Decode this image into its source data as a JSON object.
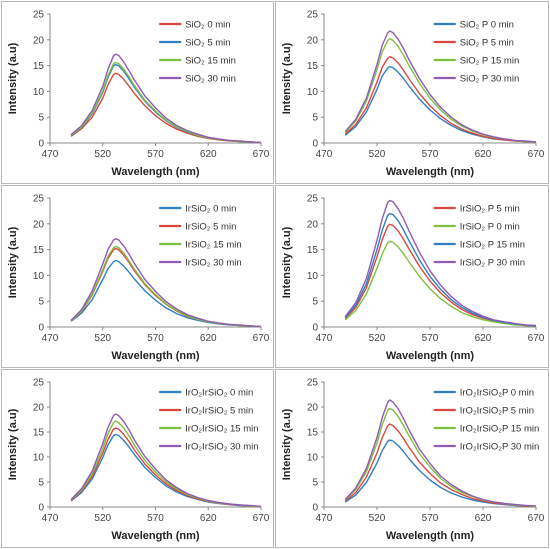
{
  "chart_data": [
    {
      "type": "line",
      "xlabel": "Wavelength (nm)",
      "ylabel": "Intensity (a.u)",
      "xlim": [
        470,
        670
      ],
      "ylim": [
        0,
        25
      ],
      "xticks": [
        "470",
        "520",
        "570",
        "620",
        "670"
      ],
      "yticks": [
        "0",
        "5",
        "10",
        "15",
        "20",
        "25"
      ],
      "legend_position": "top-right",
      "x": [
        490,
        500,
        510,
        520,
        525,
        530,
        532,
        535,
        540,
        545,
        550,
        560,
        570,
        580,
        590,
        600,
        610,
        620,
        630,
        640,
        650,
        660,
        670
      ],
      "series": [
        {
          "name": "SiO₂ 0 min",
          "color": "#d9473f",
          "values": [
            1.3,
            2.8,
            5.0,
            8.7,
            11.3,
            13.2,
            13.5,
            13.3,
            12.3,
            11.0,
            9.6,
            7.2,
            5.3,
            3.8,
            2.7,
            1.9,
            1.3,
            0.9,
            0.6,
            0.4,
            0.3,
            0.2,
            0.1
          ]
        },
        {
          "name": "SiO₂ 5 min",
          "color": "#2f7fc1",
          "values": [
            1.4,
            3.0,
            5.6,
            9.8,
            12.7,
            14.9,
            15.2,
            15.0,
            13.9,
            12.4,
            10.8,
            8.1,
            6.0,
            4.3,
            3.0,
            2.1,
            1.5,
            1.0,
            0.7,
            0.5,
            0.3,
            0.2,
            0.1
          ]
        },
        {
          "name": "SiO₂ 15 min",
          "color": "#7fbf3f",
          "values": [
            1.5,
            3.1,
            5.8,
            10.1,
            13.1,
            15.3,
            15.6,
            15.4,
            14.3,
            12.8,
            11.1,
            8.3,
            6.2,
            4.4,
            3.1,
            2.2,
            1.5,
            1.0,
            0.7,
            0.5,
            0.3,
            0.2,
            0.1
          ]
        },
        {
          "name": "SiO₂ 30 min",
          "color": "#8e5bb5",
          "values": [
            1.6,
            3.4,
            6.3,
            11.0,
            14.3,
            16.8,
            17.2,
            17.0,
            15.7,
            14.0,
            12.2,
            9.1,
            6.8,
            4.8,
            3.4,
            2.4,
            1.7,
            1.1,
            0.8,
            0.5,
            0.4,
            0.2,
            0.1
          ]
        }
      ]
    },
    {
      "type": "line",
      "xlabel": "Wavelength (nm)",
      "ylabel": "Intensity (a.u)",
      "xlim": [
        470,
        670
      ],
      "ylim": [
        0,
        25
      ],
      "xticks": [
        "470",
        "520",
        "570",
        "620",
        "670"
      ],
      "yticks": [
        "0",
        "5",
        "10",
        "15",
        "20",
        "25"
      ],
      "legend_position": "top-right",
      "x": [
        490,
        500,
        510,
        520,
        525,
        530,
        532,
        535,
        540,
        545,
        550,
        560,
        570,
        580,
        590,
        600,
        610,
        620,
        630,
        640,
        650,
        660,
        670
      ],
      "series": [
        {
          "name": "SiO₂ P  0 min",
          "color": "#2f7fc1",
          "values": [
            1.5,
            3.2,
            6.0,
            10.4,
            13.0,
            14.5,
            14.8,
            14.6,
            13.7,
            12.5,
            11.1,
            8.5,
            6.4,
            4.7,
            3.4,
            2.4,
            1.7,
            1.2,
            0.8,
            0.6,
            0.4,
            0.3,
            0.2
          ]
        },
        {
          "name": "SiO₂ P  5 min",
          "color": "#d9473f",
          "values": [
            1.7,
            3.6,
            6.8,
            11.8,
            14.7,
            16.4,
            16.7,
            16.5,
            15.5,
            14.1,
            12.5,
            9.6,
            7.2,
            5.3,
            3.8,
            2.7,
            1.9,
            1.3,
            0.9,
            0.6,
            0.4,
            0.3,
            0.2
          ]
        },
        {
          "name": "SiO₂ P 15 min",
          "color": "#7fbf3f",
          "values": [
            2.0,
            4.3,
            8.1,
            14.2,
            17.7,
            19.8,
            20.2,
            19.9,
            18.7,
            17.0,
            15.1,
            11.6,
            8.7,
            6.4,
            4.6,
            3.3,
            2.3,
            1.6,
            1.1,
            0.8,
            0.5,
            0.3,
            0.2
          ]
        },
        {
          "name": "SiO₂ P 30 min",
          "color": "#8e5bb5",
          "values": [
            2.2,
            4.6,
            8.7,
            15.2,
            19.0,
            21.3,
            21.7,
            21.4,
            20.1,
            18.3,
            16.2,
            12.5,
            9.4,
            6.9,
            5.0,
            3.5,
            2.5,
            1.7,
            1.2,
            0.8,
            0.5,
            0.4,
            0.2
          ]
        }
      ]
    },
    {
      "type": "line",
      "xlabel": "Wavelength (nm)",
      "ylabel": "Intensity (a.u)",
      "xlim": [
        470,
        670
      ],
      "ylim": [
        0,
        25
      ],
      "xticks": [
        "470",
        "520",
        "570",
        "620",
        "670"
      ],
      "yticks": [
        "0",
        "5",
        "10",
        "15",
        "20",
        "25"
      ],
      "legend_position": "top-right",
      "x": [
        490,
        500,
        510,
        520,
        525,
        530,
        532,
        535,
        540,
        545,
        550,
        560,
        570,
        580,
        590,
        600,
        610,
        620,
        630,
        640,
        650,
        660,
        670
      ],
      "series": [
        {
          "name": "IrSiO₂  0 min",
          "color": "#2f7fc1",
          "values": [
            1.1,
            2.7,
            5.3,
            9.2,
            11.3,
            12.6,
            12.9,
            12.7,
            11.8,
            10.6,
            9.3,
            7.0,
            5.2,
            3.7,
            2.6,
            1.8,
            1.3,
            0.9,
            0.6,
            0.4,
            0.3,
            0.2,
            0.1
          ]
        },
        {
          "name": "IrSiO₂  5 min",
          "color": "#d9473f",
          "values": [
            1.2,
            3.0,
            6.2,
            10.8,
            13.3,
            14.9,
            15.2,
            15.0,
            13.9,
            12.5,
            10.9,
            8.2,
            6.1,
            4.4,
            3.1,
            2.1,
            1.5,
            1.0,
            0.7,
            0.5,
            0.3,
            0.2,
            0.1
          ]
        },
        {
          "name": "IrSiO₂  15 min",
          "color": "#7fbf3f",
          "values": [
            1.2,
            3.1,
            6.4,
            11.1,
            13.7,
            15.3,
            15.6,
            15.4,
            14.3,
            12.8,
            11.2,
            8.4,
            6.3,
            4.5,
            3.2,
            2.2,
            1.5,
            1.0,
            0.7,
            0.5,
            0.3,
            0.2,
            0.1
          ]
        },
        {
          "name": "IrSiO₂  30 min",
          "color": "#8e5bb5",
          "values": [
            1.3,
            3.4,
            7.0,
            12.2,
            15.0,
            16.8,
            17.1,
            16.9,
            15.7,
            14.1,
            12.3,
            9.2,
            6.9,
            4.9,
            3.5,
            2.4,
            1.7,
            1.1,
            0.8,
            0.5,
            0.4,
            0.2,
            0.1
          ]
        }
      ]
    },
    {
      "type": "line",
      "xlabel": "Wavelength (nm)",
      "ylabel": "Intensity (a.u)",
      "xlim": [
        470,
        670
      ],
      "ylim": [
        0,
        25
      ],
      "xticks": [
        "470",
        "520",
        "570",
        "620",
        "670"
      ],
      "yticks": [
        "0",
        "5",
        "10",
        "15",
        "20",
        "25"
      ],
      "legend_position": "top-right",
      "x": [
        490,
        500,
        510,
        520,
        525,
        530,
        532,
        535,
        540,
        545,
        550,
        560,
        570,
        580,
        590,
        600,
        610,
        620,
        630,
        640,
        650,
        660,
        670
      ],
      "series": [
        {
          "name": "IrSiO₂ P 5 min",
          "color": "#d9473f",
          "values": [
            1.6,
            3.8,
            7.6,
            13.6,
            17.0,
            19.5,
            19.9,
            19.7,
            18.6,
            17.0,
            15.2,
            11.8,
            8.9,
            6.6,
            4.8,
            3.4,
            2.4,
            1.7,
            1.2,
            0.8,
            0.5,
            0.3,
            0.2
          ]
        },
        {
          "name": "IrSiO₂ P 0 min",
          "color": "#7fbf3f",
          "values": [
            1.4,
            3.2,
            6.4,
            11.4,
            14.2,
            16.3,
            16.6,
            16.4,
            15.5,
            14.2,
            12.7,
            9.8,
            7.4,
            5.5,
            4.0,
            2.8,
            2.0,
            1.4,
            1.0,
            0.7,
            0.4,
            0.3,
            0.2
          ]
        },
        {
          "name": "IrSiO₂ P 15 min",
          "color": "#2f7fc1",
          "values": [
            1.8,
            4.2,
            8.4,
            15.0,
            18.8,
            21.6,
            22.0,
            21.8,
            20.6,
            18.8,
            16.8,
            13.0,
            9.8,
            7.3,
            5.3,
            3.8,
            2.7,
            1.9,
            1.3,
            0.9,
            0.6,
            0.4,
            0.2
          ]
        },
        {
          "name": "IrSiO₂ P 30 min",
          "color": "#8e5bb5",
          "values": [
            2.0,
            4.7,
            9.4,
            16.8,
            21.0,
            24.1,
            24.5,
            24.3,
            22.9,
            21.0,
            18.7,
            14.5,
            10.9,
            8.1,
            5.9,
            4.2,
            3.0,
            2.1,
            1.4,
            1.0,
            0.7,
            0.4,
            0.3
          ]
        }
      ]
    },
    {
      "type": "line",
      "xlabel": "Wavelength (nm)",
      "ylabel": "Intensity (a.u)",
      "xlim": [
        470,
        670
      ],
      "ylim": [
        0,
        25
      ],
      "xticks": [
        "470",
        "520",
        "570",
        "620",
        "670"
      ],
      "yticks": [
        "0",
        "5",
        "10",
        "15",
        "20",
        "25"
      ],
      "legend_position": "top-right",
      "x": [
        490,
        500,
        510,
        520,
        525,
        530,
        532,
        535,
        540,
        545,
        550,
        560,
        570,
        580,
        590,
        600,
        610,
        620,
        630,
        640,
        650,
        660,
        670
      ],
      "series": [
        {
          "name": "IrO₂IrSiO₂  0 min",
          "color": "#2f7fc1",
          "values": [
            1.2,
            2.9,
            5.6,
            9.9,
            12.4,
            14.2,
            14.5,
            14.3,
            13.3,
            12.0,
            10.5,
            7.9,
            5.9,
            4.2,
            3.0,
            2.1,
            1.5,
            1.0,
            0.7,
            0.5,
            0.3,
            0.2,
            0.1
          ]
        },
        {
          "name": "IrO₂IrSiO₂  5 min",
          "color": "#d9473f",
          "values": [
            1.3,
            3.2,
            6.1,
            10.8,
            13.5,
            15.5,
            15.8,
            15.6,
            14.5,
            13.1,
            11.4,
            8.6,
            6.4,
            4.6,
            3.3,
            2.3,
            1.6,
            1.1,
            0.8,
            0.5,
            0.4,
            0.2,
            0.1
          ]
        },
        {
          "name": "IrO₂IrSiO₂  15 min",
          "color": "#7fbf3f",
          "values": [
            1.4,
            3.4,
            6.6,
            11.7,
            14.7,
            16.8,
            17.2,
            16.9,
            15.8,
            14.2,
            12.4,
            9.3,
            7.0,
            5.0,
            3.6,
            2.5,
            1.8,
            1.2,
            0.8,
            0.6,
            0.4,
            0.2,
            0.1
          ]
        },
        {
          "name": "IrO₂IrSiO₂  30 min",
          "color": "#8e5bb5",
          "values": [
            1.5,
            3.7,
            7.2,
            12.7,
            15.9,
            18.2,
            18.6,
            18.3,
            17.1,
            15.4,
            13.4,
            10.1,
            7.6,
            5.4,
            3.9,
            2.7,
            1.9,
            1.3,
            0.9,
            0.6,
            0.4,
            0.3,
            0.1
          ]
        }
      ]
    },
    {
      "type": "line",
      "xlabel": "Wavelength (nm)",
      "ylabel": "Intensity (a.u)",
      "xlim": [
        470,
        670
      ],
      "ylim": [
        0,
        25
      ],
      "xticks": [
        "470",
        "520",
        "570",
        "620",
        "670"
      ],
      "yticks": [
        "0",
        "5",
        "10",
        "15",
        "20",
        "25"
      ],
      "legend_position": "top-right",
      "x": [
        490,
        500,
        510,
        520,
        525,
        530,
        532,
        535,
        540,
        545,
        550,
        560,
        570,
        580,
        590,
        600,
        610,
        620,
        630,
        640,
        650,
        660,
        670
      ],
      "series": [
        {
          "name": "IrO₂IrSiO₂P  0 min",
          "color": "#2f7fc1",
          "values": [
            1.0,
            2.4,
            4.9,
            8.8,
            11.3,
            13.1,
            13.4,
            13.2,
            12.3,
            11.1,
            9.7,
            7.3,
            5.4,
            3.9,
            2.8,
            2.0,
            1.4,
            1.0,
            0.7,
            0.5,
            0.3,
            0.2,
            0.1
          ]
        },
        {
          "name": "IrO₂IrSiO₂P  5 min",
          "color": "#d9473f",
          "values": [
            1.2,
            2.9,
            6.0,
            10.8,
            13.9,
            16.2,
            16.6,
            16.3,
            15.2,
            13.7,
            12.0,
            9.0,
            6.7,
            4.8,
            3.5,
            2.5,
            1.7,
            1.2,
            0.8,
            0.6,
            0.4,
            0.2,
            0.1
          ]
        },
        {
          "name": "IrO₂IrSiO₂P 15 min",
          "color": "#7fbf3f",
          "values": [
            1.4,
            3.5,
            7.1,
            12.8,
            16.5,
            19.3,
            19.7,
            19.4,
            18.1,
            16.3,
            14.3,
            10.7,
            8.0,
            5.7,
            4.1,
            2.9,
            2.1,
            1.4,
            1.0,
            0.7,
            0.4,
            0.3,
            0.1
          ]
        },
        {
          "name": "IrO₂IrSiO₂P 30 min",
          "color": "#8e5bb5",
          "values": [
            1.5,
            3.8,
            7.7,
            13.9,
            17.9,
            20.9,
            21.4,
            21.0,
            19.6,
            17.7,
            15.5,
            11.6,
            8.7,
            6.2,
            4.5,
            3.2,
            2.2,
            1.5,
            1.0,
            0.7,
            0.5,
            0.3,
            0.2
          ]
        }
      ]
    }
  ]
}
